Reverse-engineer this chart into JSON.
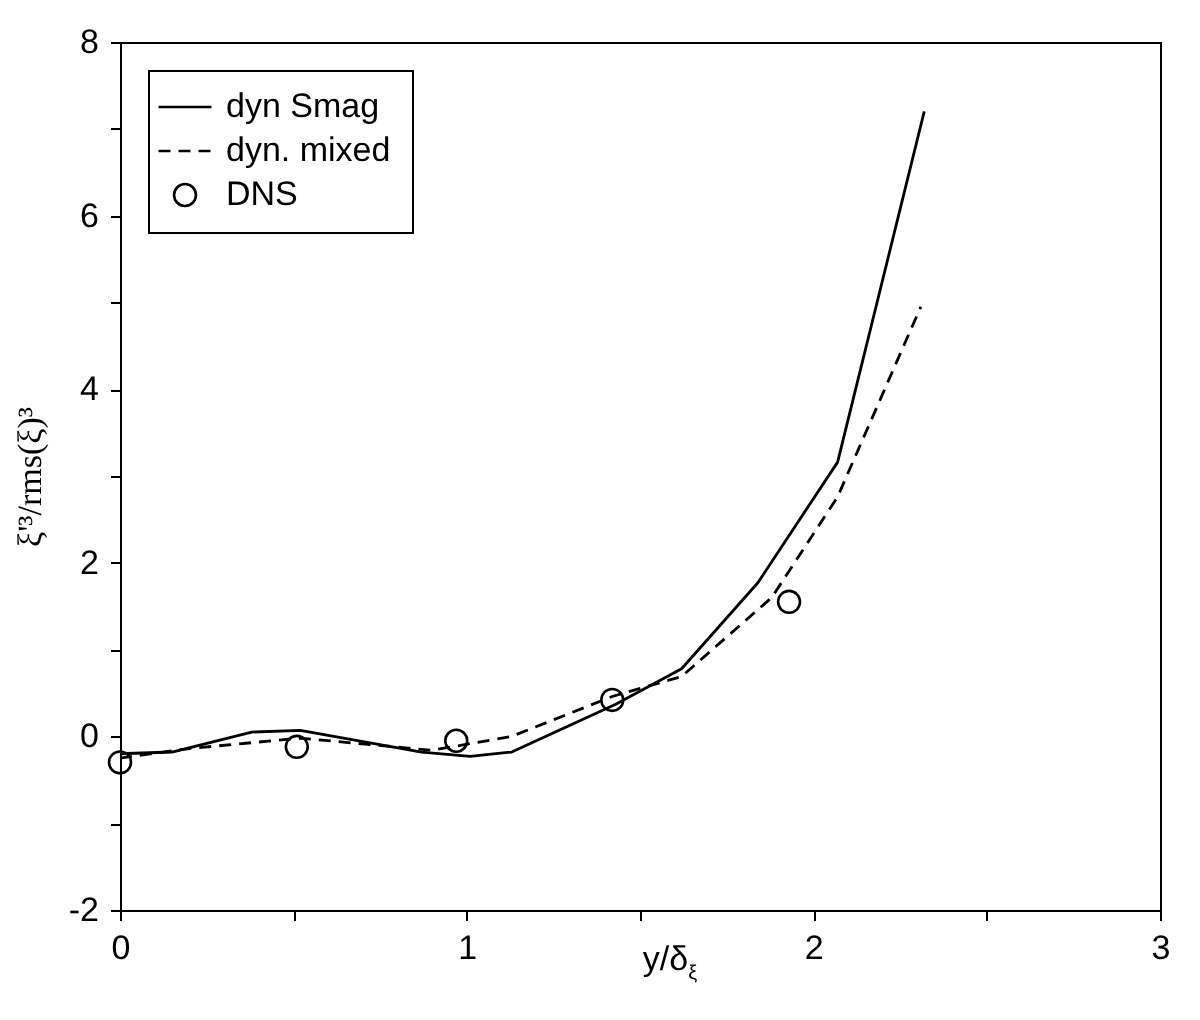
{
  "chart_data": {
    "type": "line",
    "xlabel": "y/δ$_{ξ}$",
    "ylabel": "ξ'³/rms(ξ)³",
    "xlim": [
      0,
      3
    ],
    "xticks": [
      0,
      {
        "value": 0.5,
        "label": null
      },
      1,
      {
        "value": 1.5,
        "label": null
      },
      2,
      {
        "value": 2.5,
        "label": null
      },
      3
    ],
    "ylim": [
      -2,
      8
    ],
    "yticks": [
      -2,
      {
        "value": -1,
        "label": null
      },
      0,
      {
        "value": 1,
        "label": null
      },
      2,
      {
        "value": 3,
        "label": null
      },
      4,
      {
        "value": 5,
        "label": null
      },
      6,
      {
        "value": 7,
        "label": null
      },
      8
    ],
    "grid": false,
    "legend": "top left",
    "series": [
      {
        "name": "dyn Smag",
        "color": "#000000",
        "line_style": "solid",
        "marker": "none",
        "x": [
          0,
          0.15,
          0.38,
          0.52,
          0.87,
          1.01,
          1.13,
          1.43,
          1.62,
          1.84,
          2.07,
          2.32
        ],
        "values": [
          -0.2,
          -0.18,
          0.05,
          0.07,
          -0.18,
          -0.23,
          -0.18,
          0.37,
          0.78,
          1.77,
          3.16,
          7.2
        ]
      },
      {
        "name": "dyn. mixed",
        "color": "#000000",
        "line_style": "dashed",
        "marker": "none",
        "x": [
          0,
          0.2,
          0.52,
          0.9,
          1.13,
          1.42,
          1.62,
          1.88,
          2.07,
          2.31
        ],
        "values": [
          -0.25,
          -0.14,
          -0.02,
          -0.16,
          0.0,
          0.46,
          0.69,
          1.6,
          2.76,
          4.95
        ]
      },
      {
        "name": "DNS",
        "type": "scatter",
        "color": "#000000",
        "marker": "circle",
        "x": [
          0,
          0.51,
          0.97,
          1.42,
          1.93
        ],
        "values": [
          -0.3,
          -0.12,
          -0.05,
          0.42,
          1.55
        ]
      }
    ]
  }
}
